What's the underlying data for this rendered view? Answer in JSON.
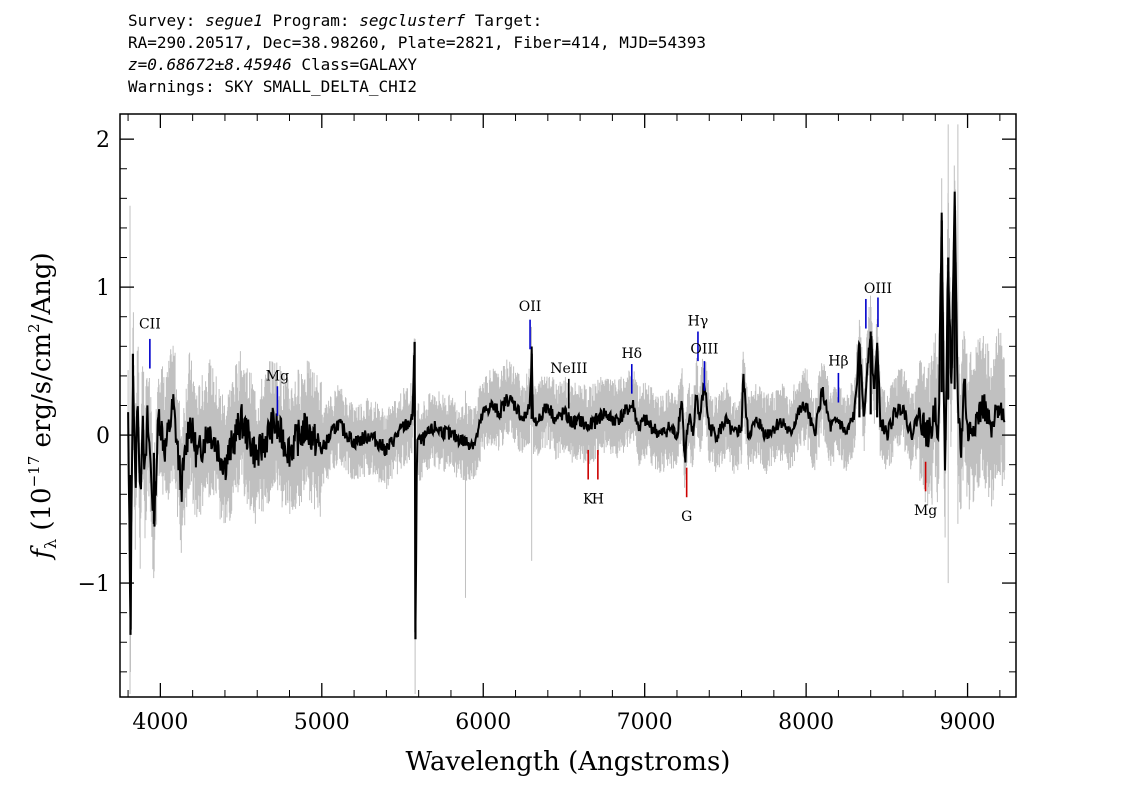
{
  "header": {
    "line1": {
      "survey_label": "Survey: ",
      "survey": "segue1",
      "program_label": " Program: ",
      "program": "segclusterf",
      "target_label": " Target:"
    },
    "line2": "RA=290.20517, Dec=38.98260, Plate=2821, Fiber=414, MJD=54393",
    "line3": {
      "z": "z=0.68672±8.45946",
      "class_text": " Class=GALAXY"
    },
    "line4": "Warnings: SKY SMALL_DELTA_CHI2"
  },
  "chart_data": {
    "type": "line",
    "xlabel": "Wavelength (Angstroms)",
    "ylabel": "f",
    "ylabel_sub": "λ",
    "ylabel_units": " (10",
    "ylabel_exp": "−17",
    "ylabel_units2": " erg/s/cm",
    "ylabel_exp2": "2",
    "ylabel_units3": "/Ang)",
    "xlim": [
      3750,
      9300
    ],
    "ylim": [
      -1.77,
      2.17
    ],
    "x_ticks": [
      4000,
      5000,
      6000,
      7000,
      8000,
      9000
    ],
    "x_tick_labels": [
      "4000",
      "5000",
      "6000",
      "7000",
      "8000",
      "9000"
    ],
    "y_ticks": [
      -1,
      0,
      1,
      2
    ],
    "y_tick_labels": [
      "−1",
      "0",
      "1",
      "2"
    ],
    "grid": false,
    "series": [
      {
        "role": "flux",
        "color": "#000000",
        "x": [
          3800,
          3815,
          3830,
          3845,
          3860,
          3875,
          3890,
          3905,
          3920,
          3940,
          3960,
          3990,
          4030,
          4080,
          4130,
          4180,
          4230,
          4300,
          4400,
          4500,
          4600,
          4700,
          4800,
          4900,
          5000,
          5100,
          5200,
          5300,
          5400,
          5500,
          5560,
          5575,
          5580,
          5590,
          5610,
          5700,
          5800,
          5900,
          5950,
          6000,
          6050,
          6100,
          6150,
          6200,
          6250,
          6290,
          6300,
          6310,
          6350,
          6400,
          6450,
          6500,
          6550,
          6600,
          6650,
          6700,
          6750,
          6800,
          6850,
          6900,
          6930,
          6960,
          7000,
          7050,
          7100,
          7150,
          7200,
          7230,
          7250,
          7260,
          7280,
          7300,
          7320,
          7340,
          7370,
          7400,
          7450,
          7500,
          7550,
          7600,
          7610,
          7640,
          7700,
          7750,
          7800,
          7850,
          7900,
          7950,
          8000,
          8050,
          8100,
          8150,
          8200,
          8250,
          8300,
          8330,
          8360,
          8380,
          8400,
          8420,
          8440,
          8460,
          8500,
          8550,
          8600,
          8650,
          8700,
          8750,
          8780,
          8800,
          8820,
          8840,
          8860,
          8880,
          8900,
          8920,
          8940,
          8960,
          8980,
          9000,
          9050,
          9100,
          9150,
          9200,
          9230
        ],
        "y": [
          0.1,
          -1.35,
          0.55,
          -0.4,
          0.3,
          -0.5,
          0.2,
          -0.3,
          0.1,
          -0.2,
          -0.6,
          0.15,
          -0.1,
          0.2,
          -0.35,
          0.1,
          -0.15,
          0.05,
          -0.2,
          0.1,
          -0.15,
          0.08,
          -0.1,
          0.05,
          -0.1,
          0.08,
          -0.05,
          0.0,
          -0.1,
          0.05,
          0.1,
          0.63,
          -1.38,
          0.0,
          -0.05,
          0.05,
          0.0,
          -0.05,
          -0.05,
          0.15,
          0.2,
          0.15,
          0.25,
          0.2,
          0.1,
          0.2,
          0.55,
          0.05,
          0.12,
          0.2,
          0.1,
          0.15,
          0.08,
          0.1,
          0.05,
          0.1,
          0.15,
          0.1,
          0.12,
          0.18,
          0.2,
          0.05,
          0.1,
          0.05,
          0.0,
          0.05,
          0.0,
          0.25,
          -0.2,
          0.0,
          0.1,
          0.0,
          0.3,
          0.1,
          0.35,
          0.05,
          0.0,
          0.1,
          0.0,
          0.05,
          0.4,
          0.0,
          0.1,
          0.0,
          0.05,
          0.1,
          0.0,
          0.15,
          0.2,
          0.0,
          0.3,
          0.05,
          0.1,
          0.0,
          0.15,
          0.6,
          0.1,
          0.5,
          0.7,
          0.3,
          0.6,
          0.1,
          0.0,
          0.15,
          0.2,
          0.0,
          0.15,
          0.0,
          0.05,
          0.2,
          0.0,
          1.45,
          -0.3,
          1.2,
          0.3,
          1.55,
          0.2,
          -0.1,
          0.4,
          0.0,
          0.1,
          0.2,
          0.0,
          0.25,
          0.05
        ]
      }
    ],
    "lines": [
      {
        "label": "CII",
        "x": 3935,
        "y0": 0.45,
        "y1": 0.65,
        "label_y": 0.72,
        "color": "#0000cc",
        "side": "above",
        "mark_sub": ""
      },
      {
        "label": "Mg",
        "x": 4725,
        "y0": 0.13,
        "y1": 0.33,
        "label_y": 0.37,
        "color": "#0000cc",
        "side": "above",
        "mark_sub": ""
      },
      {
        "label": "OII",
        "x": 6290,
        "y0": 0.58,
        "y1": 0.78,
        "label_y": 0.84,
        "color": "#0000cc",
        "side": "above",
        "mark_sub": ""
      },
      {
        "label": "NeIII",
        "x": 6530,
        "y0": 0.18,
        "y1": 0.38,
        "label_y": 0.42,
        "color": "#000000",
        "side": "above",
        "mark_sub": ""
      },
      {
        "label": "Hδ",
        "x": 6920,
        "y0": 0.28,
        "y1": 0.48,
        "label_y": 0.52,
        "color": "#0000cc",
        "side": "above",
        "mark_sub": ""
      },
      {
        "label": "Hγ",
        "x": 7330,
        "y0": 0.5,
        "y1": 0.7,
        "label_y": 0.74,
        "color": "#0000cc",
        "side": "above",
        "mark_sub": ""
      },
      {
        "label": "OIII",
        "x": 7370,
        "y0": 0.3,
        "y1": 0.5,
        "label_y": 0.55,
        "color": "#0000cc",
        "side": "above",
        "mark_sub": ""
      },
      {
        "label": "Hβ",
        "x": 8200,
        "y0": 0.22,
        "y1": 0.42,
        "label_y": 0.47,
        "color": "#0000cc",
        "side": "above",
        "mark_sub": ""
      },
      {
        "label": "OIII",
        "x": 8445,
        "y0": 0.73,
        "y1": 0.93,
        "label_y": 0.96,
        "color": "#0000cc",
        "side": "above",
        "mark_sub": ""
      },
      {
        "label": "K",
        "x": 6650,
        "y0": -0.3,
        "y1": -0.1,
        "label_y": -0.38,
        "color": "#cc0000",
        "side": "below",
        "mark_sub": ""
      },
      {
        "label": "H",
        "x": 6710,
        "y0": -0.3,
        "y1": -0.1,
        "label_y": -0.38,
        "color": "#cc0000",
        "side": "below",
        "mark_sub": ""
      },
      {
        "label": "G",
        "x": 7260,
        "y0": -0.42,
        "y1": -0.22,
        "label_y": -0.5,
        "color": "#cc0000",
        "side": "below",
        "mark_sub": ""
      },
      {
        "label": "Mg",
        "x": 8740,
        "y0": -0.38,
        "y1": -0.18,
        "label_y": -0.46,
        "color": "#cc0000",
        "side": "below",
        "mark_sub": ""
      }
    ],
    "extra_marks": [
      {
        "x": 8370,
        "y0": 0.72,
        "y1": 0.92,
        "color": "#0000cc"
      }
    ],
    "colors": {
      "flux": "#000000",
      "noise": "#c0c0c0",
      "emission": "#0000cc",
      "absorption": "#cc0000"
    }
  }
}
